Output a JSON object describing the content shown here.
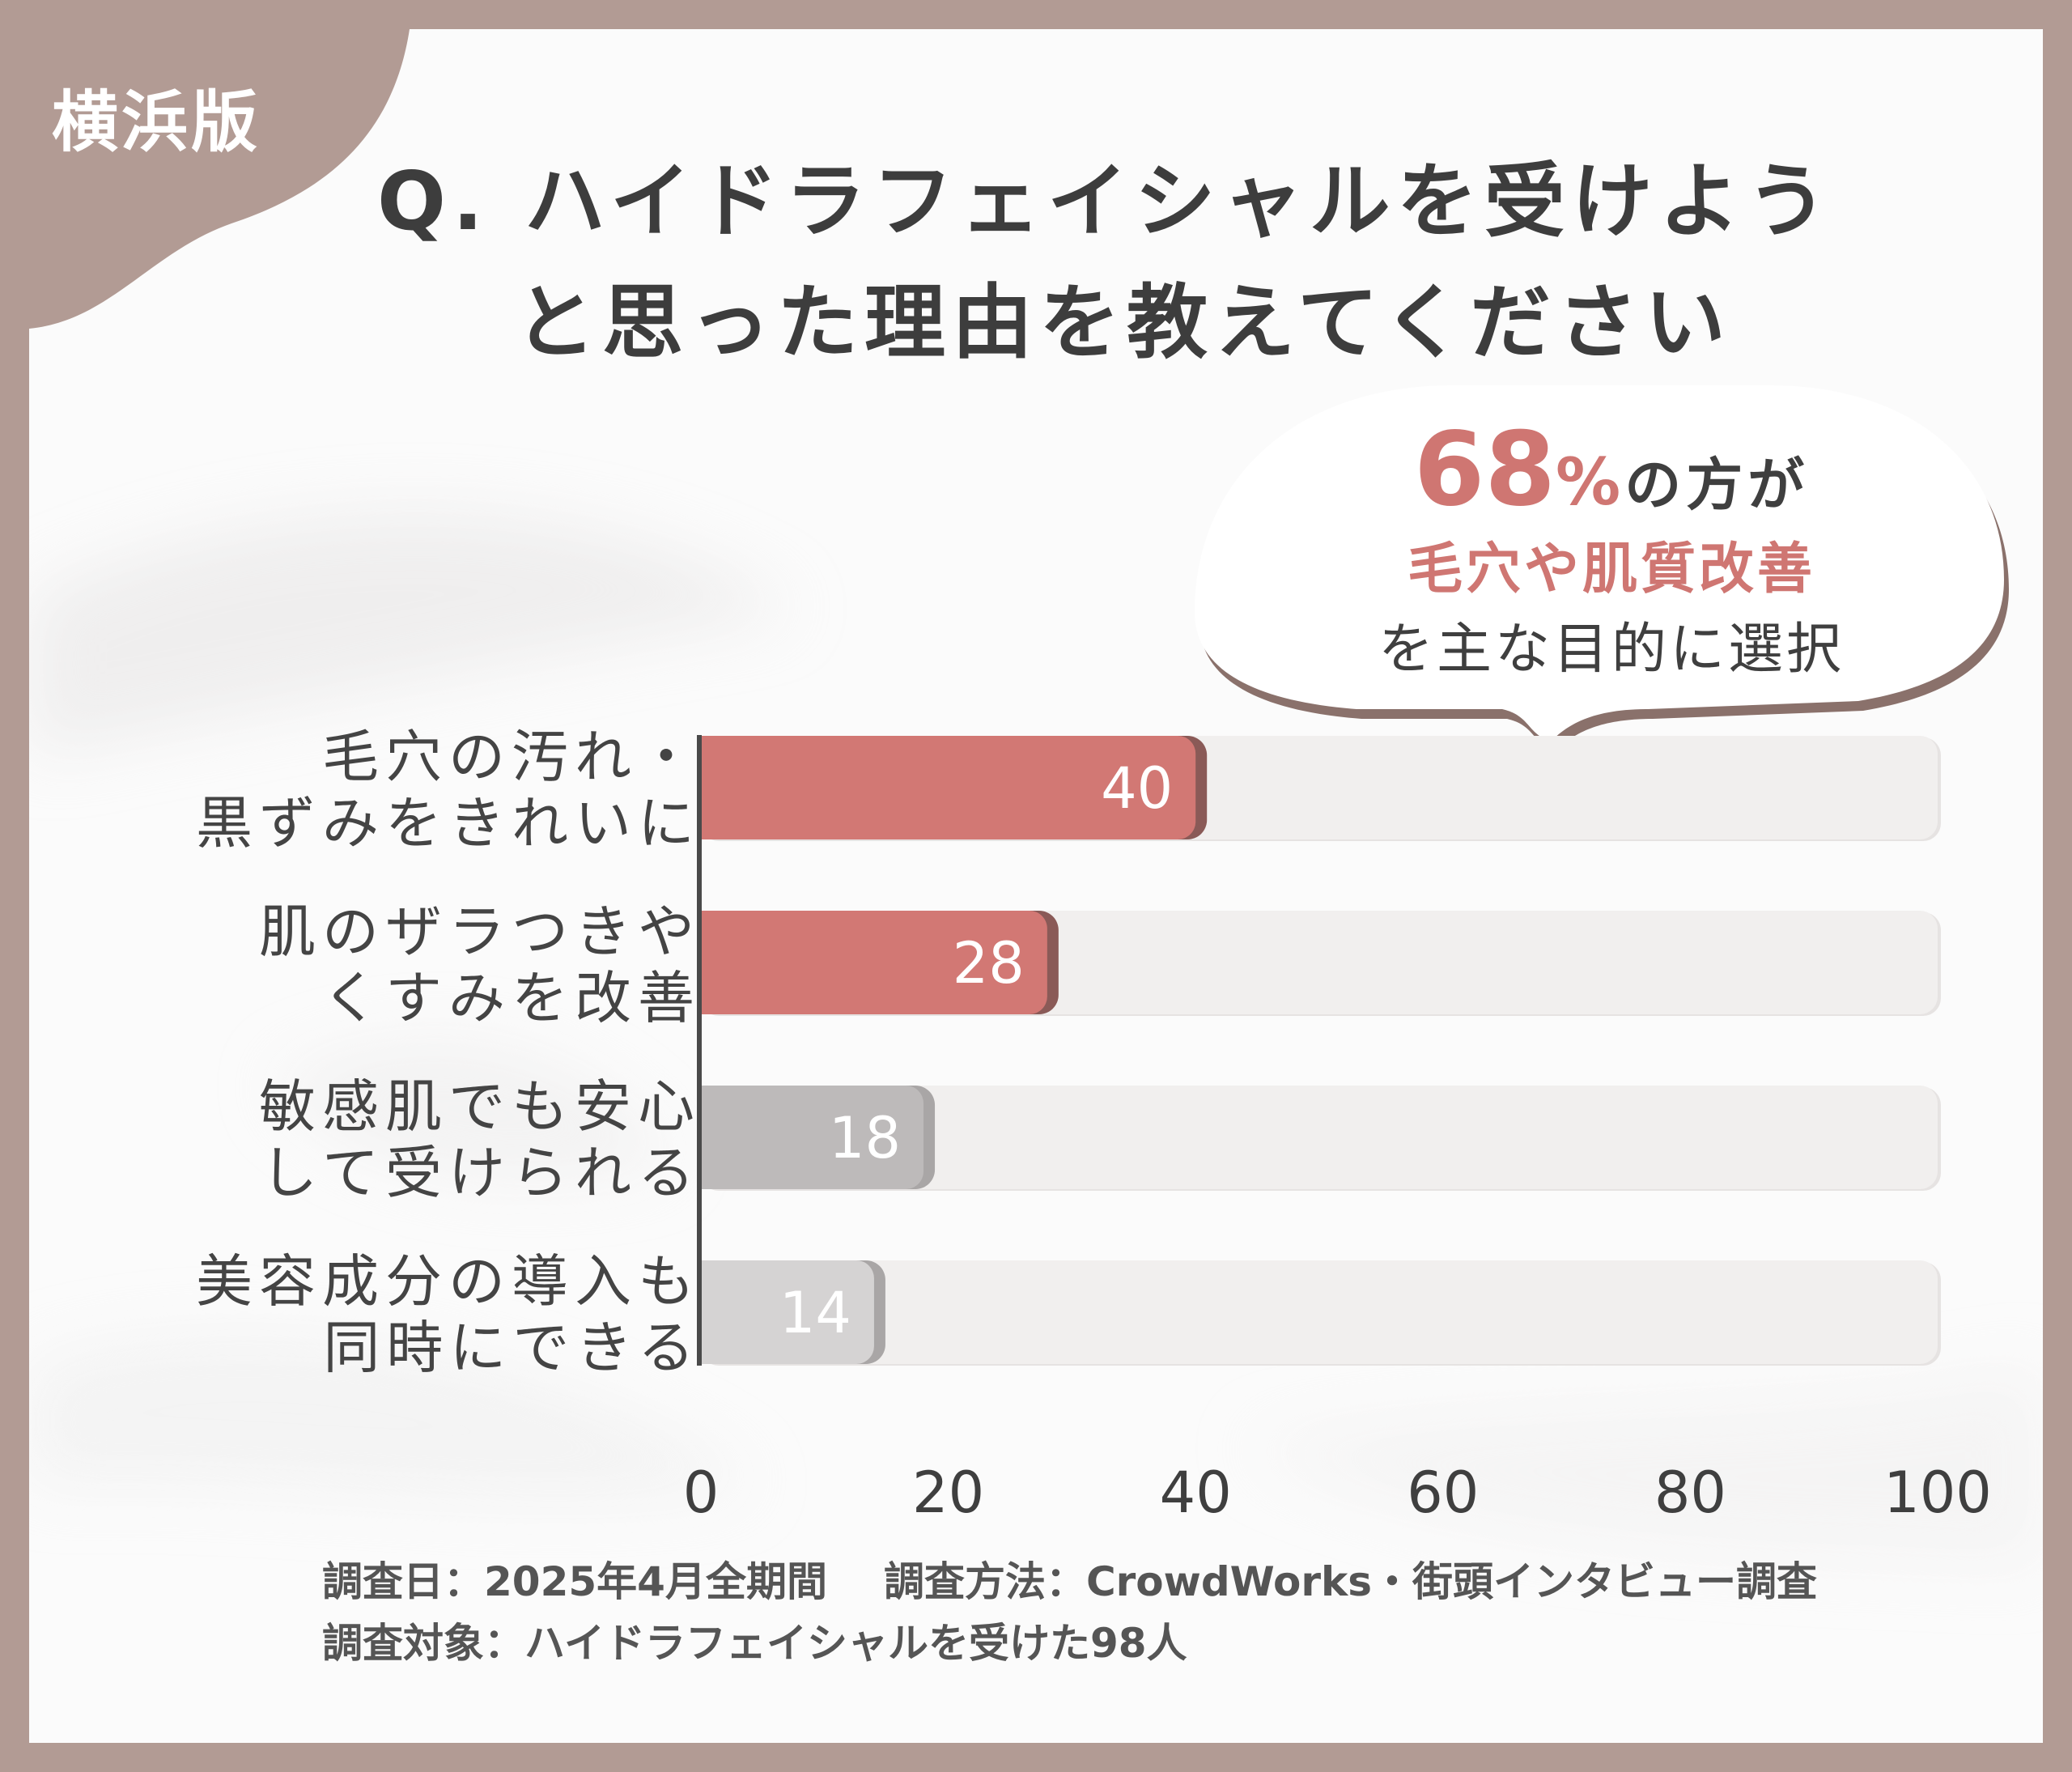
{
  "badge": "横浜版",
  "title": {
    "line1": "Q. ハイドラフェイシャルを受けよう",
    "line2": "と思った理由を教えてください"
  },
  "callout": {
    "percent_value": "68",
    "percent_sign": "%",
    "line1_rest": "の方が",
    "line2": "毛穴や肌質改善",
    "line3": "を主な目的に選択"
  },
  "colors": {
    "accent": "#d27874",
    "accent_shadow": "#8a5a57",
    "grey_dark": "#bdbaba",
    "grey_light": "#d5d3d3",
    "grey_shadow": "#a9a6a6",
    "track": "#f1efee",
    "frame": "#b29b94"
  },
  "chart_data": {
    "type": "bar",
    "orientation": "horizontal",
    "categories": [
      [
        "毛穴の汚れ・",
        "黒ずみをきれいに"
      ],
      [
        "肌のザラつきや",
        "くすみを改善"
      ],
      [
        "敏感肌でも安心",
        "して受けられる"
      ],
      [
        "美容成分の導入も",
        "同時にできる"
      ]
    ],
    "values": [
      40,
      28,
      18,
      14
    ],
    "xlim": [
      0,
      100
    ],
    "xticks": [
      "0",
      "20",
      "40",
      "60",
      "80",
      "100"
    ],
    "bar_colors": [
      "accent",
      "accent",
      "grey_dark",
      "grey_light"
    ],
    "title": "",
    "xlabel": "",
    "ylabel": ""
  },
  "footer": {
    "date": "調査日：2025年4月全期間",
    "method": "調査方法：CrowdWorks・街頭インタビュー調査",
    "target": "調査対象：ハイドラフェイシャルを受けた98人"
  }
}
